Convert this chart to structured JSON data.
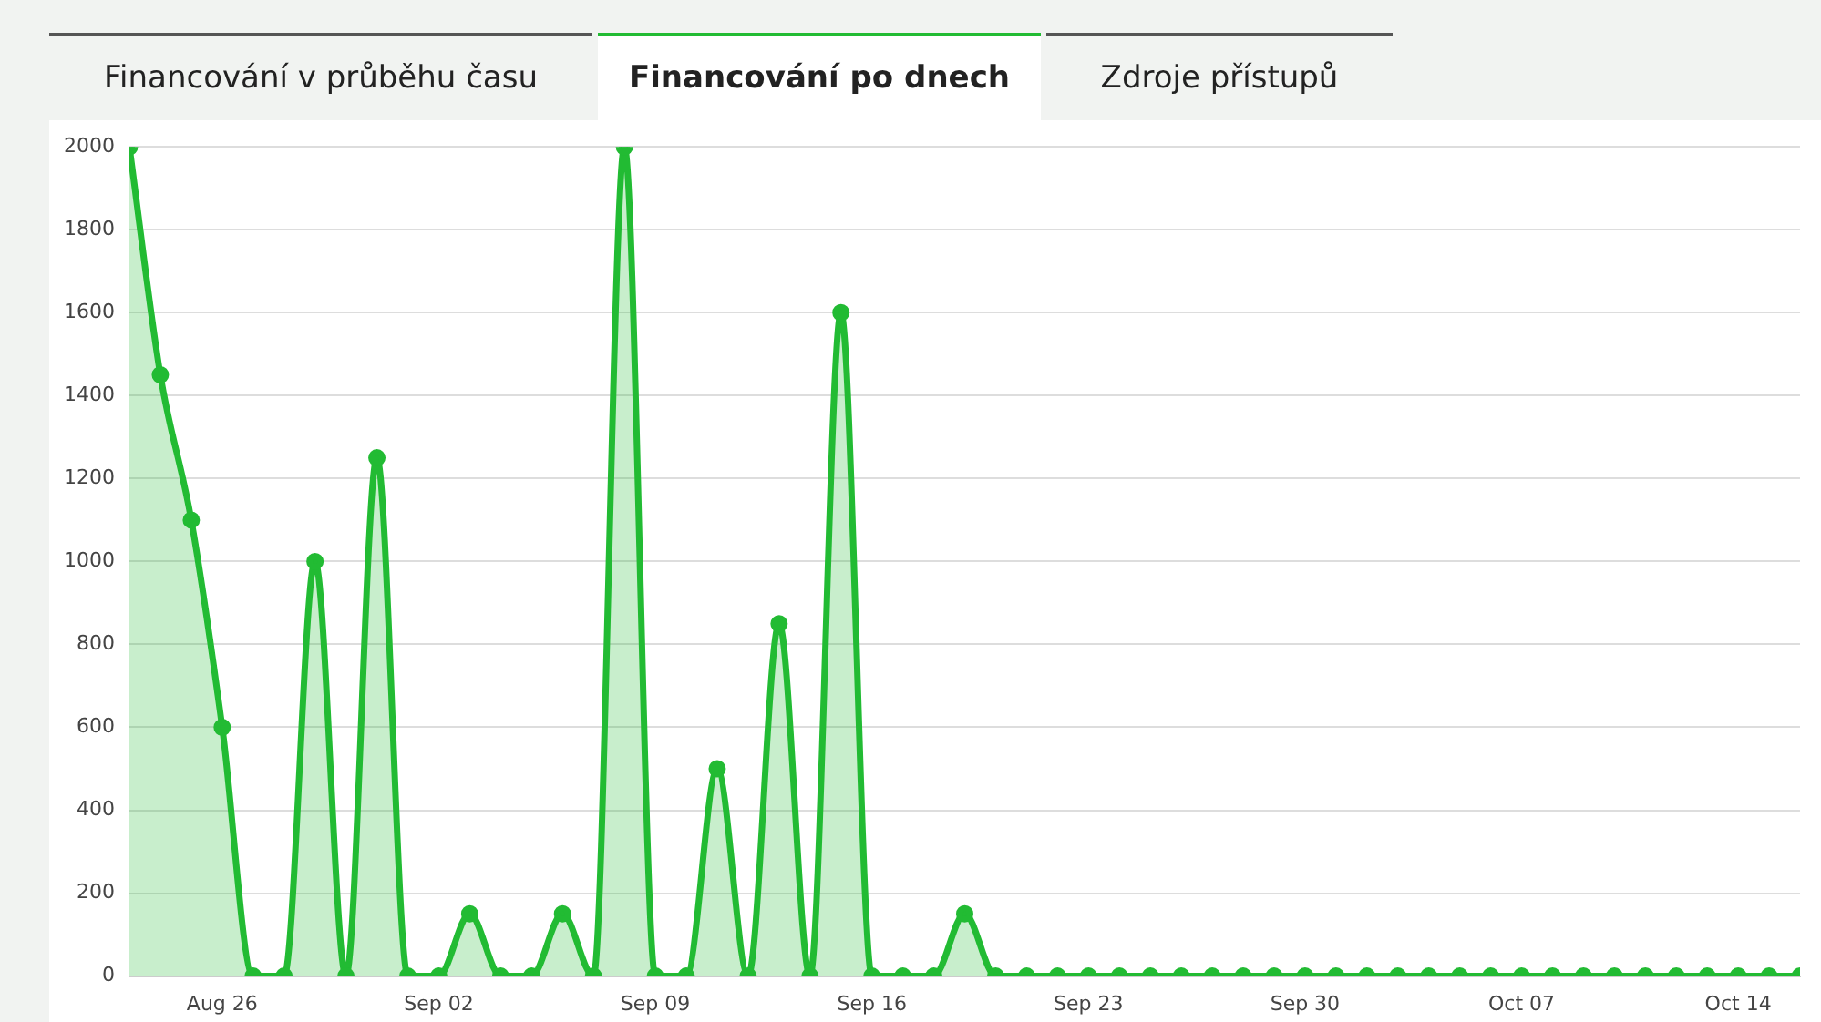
{
  "chart_data": {
    "type": "area",
    "annotations": [
      "Financování v průběhu času",
      "Financování po dnech",
      "Zdroje přístupů"
    ],
    "x": [
      "--08-23",
      "--08-24",
      "--08-25",
      "--08-26",
      "--08-27",
      "--08-28",
      "--08-29",
      "--08-30",
      "--08-31",
      "--09-01",
      "--09-02",
      "--09-03",
      "--09-04",
      "--09-05",
      "--09-06",
      "--09-07",
      "--09-08",
      "--09-09",
      "--09-10",
      "--09-11",
      "--09-12",
      "--09-13",
      "--09-14",
      "--09-15",
      "--09-16",
      "--09-17",
      "--09-18",
      "--09-19",
      "--09-20",
      "--09-21",
      "--09-22",
      "--09-23",
      "--09-24",
      "--09-25",
      "--09-26",
      "--09-27",
      "--09-28",
      "--09-29",
      "--09-30",
      "--10-01",
      "--10-02",
      "--10-03",
      "--10-04",
      "--10-05",
      "--10-06",
      "--10-07",
      "--10-08",
      "--10-09",
      "--10-10",
      "--10-11",
      "--10-12",
      "--10-13",
      "--10-14",
      "--10-15",
      "--10-16"
    ],
    "series": [
      {
        "color": "#22bb33",
        "values": [
          2000,
          1450,
          1100,
          600,
          0,
          0,
          1000,
          0,
          1250,
          0,
          0,
          150,
          0,
          0,
          150,
          0,
          2000,
          0,
          0,
          500,
          0,
          850,
          0,
          1600,
          0,
          0,
          0,
          150,
          0,
          0,
          0,
          0,
          0,
          0,
          0,
          0,
          0,
          0,
          0,
          0,
          0,
          0,
          0,
          0,
          0,
          0,
          0,
          0,
          0,
          0,
          0,
          0,
          0,
          0,
          0
        ]
      }
    ],
    "xlim": [
      "--08-23",
      "--10-16"
    ],
    "xticks": [
      {
        "value": "--08-26",
        "label": "Aug 26"
      },
      {
        "value": "--09-02",
        "label": "Sep 02"
      },
      {
        "value": "--09-09",
        "label": "Sep 09"
      },
      {
        "value": "--09-16",
        "label": "Sep 16"
      },
      {
        "value": "--09-23",
        "label": "Sep 23"
      },
      {
        "value": "--09-30",
        "label": "Sep 30"
      },
      {
        "value": "--10-07",
        "label": "Oct 07"
      },
      {
        "value": "--10-14",
        "label": "Oct 14"
      }
    ],
    "ylim": [
      0,
      2000
    ],
    "yticks": [
      0,
      200,
      400,
      600,
      800,
      1000,
      1200,
      1400,
      1600,
      1800,
      2000
    ],
    "grid": "y",
    "legend": false,
    "marker": "circle",
    "line_style": "solid"
  }
}
